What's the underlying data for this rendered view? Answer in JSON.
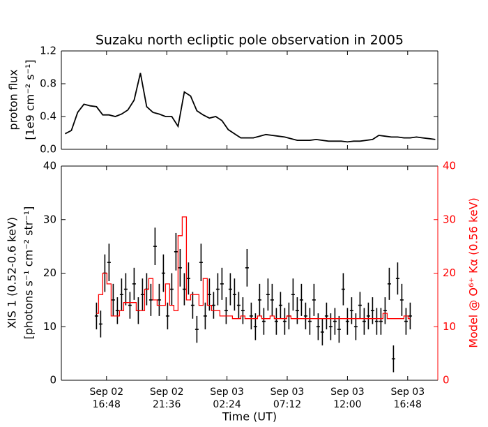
{
  "chart_data": [
    {
      "type": "line",
      "title": "Suzaku north ecliptic pole observation in 2005",
      "ylabel": [
        "proton flux",
        "[1e9 cm⁻² s⁻¹]"
      ],
      "xlim": [
        "Sep 02 13:12",
        "Sep 03 19:12"
      ],
      "ylim": [
        0,
        1.2
      ],
      "yticks": [
        {
          "value": 0,
          "label": "0.0"
        },
        0.4,
        0.8,
        1.2
      ],
      "x": [
        "Sep 02 13:30",
        "Sep 02 14:00",
        "Sep 02 14:30",
        "Sep 02 15:00",
        "Sep 02 15:30",
        "Sep 02 16:00",
        "Sep 02 16:30",
        "Sep 02 17:00",
        "Sep 02 17:30",
        "Sep 02 18:00",
        "Sep 02 18:30",
        "Sep 02 19:00",
        "Sep 02 19:30",
        "Sep 02 20:00",
        "Sep 02 20:30",
        "Sep 02 21:00",
        "Sep 02 21:30",
        "Sep 02 22:00",
        "Sep 02 22:30",
        "Sep 02 23:00",
        "Sep 02 23:30",
        "Sep 03 00:00",
        "Sep 03 00:30",
        "Sep 03 01:00",
        "Sep 03 01:30",
        "Sep 03 02:00",
        "Sep 03 02:30",
        "Sep 03 03:00",
        "Sep 03 03:30",
        "Sep 03 04:00",
        "Sep 03 04:30",
        "Sep 03 05:00",
        "Sep 03 05:30",
        "Sep 03 06:00",
        "Sep 03 06:30",
        "Sep 03 07:00",
        "Sep 03 07:30",
        "Sep 03 08:00",
        "Sep 03 08:30",
        "Sep 03 09:00",
        "Sep 03 09:30",
        "Sep 03 10:00",
        "Sep 03 10:30",
        "Sep 03 11:00",
        "Sep 03 11:30",
        "Sep 03 12:00",
        "Sep 03 12:30",
        "Sep 03 13:00",
        "Sep 03 13:30",
        "Sep 03 14:00",
        "Sep 03 14:30",
        "Sep 03 15:00",
        "Sep 03 15:30",
        "Sep 03 16:00",
        "Sep 03 16:30",
        "Sep 03 17:00",
        "Sep 03 17:30",
        "Sep 03 18:00",
        "Sep 03 18:30",
        "Sep 03 19:00"
      ],
      "series": [
        {
          "color": "#000000",
          "values": [
            0.19,
            0.23,
            0.45,
            0.55,
            0.53,
            0.52,
            0.42,
            0.42,
            0.4,
            0.43,
            0.48,
            0.6,
            0.93,
            0.52,
            0.45,
            0.43,
            0.4,
            0.4,
            0.28,
            0.7,
            0.65,
            0.47,
            0.42,
            0.38,
            0.4,
            0.35,
            0.24,
            0.19,
            0.14,
            0.14,
            0.14,
            0.16,
            0.18,
            0.17,
            0.16,
            0.15,
            0.13,
            0.11,
            0.11,
            0.11,
            0.12,
            0.11,
            0.1,
            0.1,
            0.1,
            0.09,
            0.1,
            0.1,
            0.11,
            0.12,
            0.17,
            0.16,
            0.15,
            0.15,
            0.14,
            0.14,
            0.15,
            0.14,
            0.13,
            0.12
          ]
        }
      ]
    },
    {
      "type": "errorbar",
      "ylabel": [
        "XIS 1 (0.52-0.6 keV)",
        "[photons s⁻¹ cm⁻² str⁻¹]"
      ],
      "y2label": "Model @ O⁶⁺ Kα (0.56 keV)",
      "xlabel": "Time (UT)",
      "xlim": [
        "Sep 02 13:12",
        "Sep 03 19:12"
      ],
      "xticks": [
        "Sep 02 16:48",
        "Sep 02 21:36",
        "Sep 03 02:24",
        "Sep 03 07:12",
        "Sep 03 12:00",
        "Sep 03 16:48"
      ],
      "ylim": [
        0,
        40
      ],
      "yticks": [
        0,
        10,
        20,
        30,
        40
      ],
      "y2lim": [
        0,
        40
      ],
      "y2ticks": [
        0,
        10,
        20,
        30,
        40
      ],
      "y2color": "#ff0000",
      "x": [
        "Sep 02 16:00",
        "Sep 02 16:20",
        "Sep 02 16:40",
        "Sep 02 17:00",
        "Sep 02 17:20",
        "Sep 02 17:40",
        "Sep 02 18:00",
        "Sep 02 18:20",
        "Sep 02 18:40",
        "Sep 02 19:00",
        "Sep 02 19:20",
        "Sep 02 19:40",
        "Sep 02 20:00",
        "Sep 02 20:20",
        "Sep 02 20:40",
        "Sep 02 21:00",
        "Sep 02 21:20",
        "Sep 02 21:40",
        "Sep 02 22:00",
        "Sep 02 22:20",
        "Sep 02 22:40",
        "Sep 02 23:00",
        "Sep 02 23:20",
        "Sep 02 23:40",
        "Sep 03 00:00",
        "Sep 03 00:20",
        "Sep 03 00:40",
        "Sep 03 01:00",
        "Sep 03 01:20",
        "Sep 03 01:40",
        "Sep 03 02:00",
        "Sep 03 02:20",
        "Sep 03 02:40",
        "Sep 03 03:00",
        "Sep 03 03:20",
        "Sep 03 03:40",
        "Sep 03 04:00",
        "Sep 03 04:20",
        "Sep 03 04:40",
        "Sep 03 05:00",
        "Sep 03 05:20",
        "Sep 03 05:40",
        "Sep 03 06:00",
        "Sep 03 06:20",
        "Sep 03 06:40",
        "Sep 03 07:00",
        "Sep 03 07:20",
        "Sep 03 07:40",
        "Sep 03 08:00",
        "Sep 03 08:20",
        "Sep 03 08:40",
        "Sep 03 09:00",
        "Sep 03 09:20",
        "Sep 03 09:40",
        "Sep 03 10:00",
        "Sep 03 10:20",
        "Sep 03 10:40",
        "Sep 03 11:00",
        "Sep 03 11:20",
        "Sep 03 11:40",
        "Sep 03 12:00",
        "Sep 03 12:20",
        "Sep 03 12:40",
        "Sep 03 13:00",
        "Sep 03 13:20",
        "Sep 03 13:40",
        "Sep 03 14:00",
        "Sep 03 14:20",
        "Sep 03 14:40",
        "Sep 03 15:00",
        "Sep 03 15:20",
        "Sep 03 15:40",
        "Sep 03 16:00",
        "Sep 03 16:20",
        "Sep 03 16:40",
        "Sep 03 17:00"
      ],
      "series": [
        {
          "color": "#000000",
          "values": [
            12,
            10.5,
            20,
            22,
            15,
            13,
            16,
            17,
            14,
            18,
            13,
            16,
            17,
            15,
            25,
            15,
            20,
            12,
            17,
            24,
            21,
            17,
            19,
            14,
            9.5,
            22,
            12,
            16,
            14,
            17,
            18,
            13,
            17,
            16,
            14,
            13,
            21,
            12,
            10,
            15,
            11,
            16,
            15,
            11,
            14,
            11,
            12,
            16,
            13,
            15,
            12,
            11,
            15,
            10,
            9,
            12,
            10,
            11,
            9.5,
            17,
            11,
            13,
            10,
            14,
            11,
            12,
            13,
            11,
            11,
            13,
            18,
            4,
            19,
            15,
            11,
            12
          ],
          "errors": [
            2.5,
            2.5,
            3.5,
            3.5,
            3,
            2.5,
            3,
            3,
            2.5,
            3,
            2.5,
            3,
            3,
            3,
            3.5,
            3,
            3.5,
            2.5,
            3,
            3.5,
            3.5,
            3,
            3,
            2.5,
            2.5,
            3.5,
            2.5,
            3,
            2.5,
            3,
            3,
            2.5,
            3,
            3,
            2.5,
            2.5,
            3.5,
            2.5,
            2.5,
            3,
            2.5,
            3,
            3,
            2.5,
            2.5,
            2.5,
            2.5,
            3,
            2.5,
            3,
            2.5,
            2.5,
            3,
            2.5,
            2.5,
            2.5,
            2.5,
            2.5,
            2.5,
            3,
            2.5,
            2.5,
            2.5,
            2.5,
            2.5,
            2.5,
            2.5,
            2.5,
            2.5,
            2.5,
            3,
            2.5,
            3,
            3,
            2.5,
            2.5
          ]
        },
        {
          "type": "step",
          "color": "#ff0000",
          "axis": "y2",
          "values": [
            12.5,
            16,
            20,
            18,
            12,
            12,
            13,
            14.5,
            14.5,
            14.5,
            13,
            13,
            17,
            19,
            15,
            14,
            14,
            18,
            14,
            13,
            27,
            30.5,
            15,
            16,
            16,
            14,
            19,
            14,
            13,
            13,
            12,
            12,
            12,
            11.5,
            11.5,
            12,
            11.5,
            11.5,
            11.5,
            12,
            11.5,
            11.5,
            12,
            11.5,
            11.5,
            11.5,
            12,
            11.5,
            11.5,
            11.5,
            11.5,
            11.5,
            11.5,
            11.5,
            11.5,
            11.5,
            11.5,
            11.5,
            11.5,
            11.5,
            11.5,
            11.5,
            11.5,
            11.5,
            11.5,
            11.5,
            11.5,
            11.5,
            11.5,
            12.5,
            11.5,
            11.5,
            11.5,
            11.5,
            12,
            11.5
          ]
        }
      ]
    }
  ]
}
